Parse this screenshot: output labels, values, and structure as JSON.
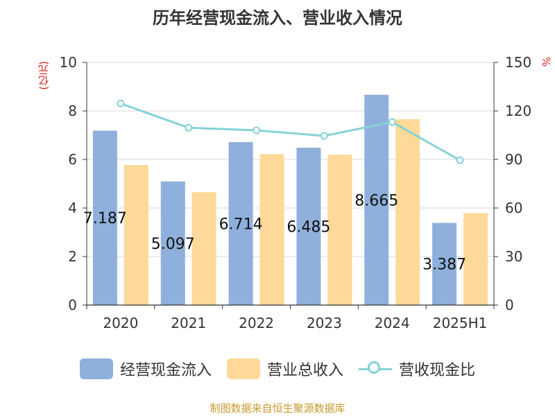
{
  "chart_data": {
    "type": "bar",
    "title": "历年经营现金流入、营业收入情况",
    "categories": [
      "2020",
      "2021",
      "2022",
      "2023",
      "2024",
      "2025H1"
    ],
    "y_left": {
      "unit": "(亿元)",
      "ticks": [
        "0",
        "2",
        "4",
        "6",
        "8",
        "10"
      ],
      "ylim": [
        0,
        10
      ]
    },
    "y_right": {
      "unit": "%",
      "ticks": [
        "0",
        "30",
        "60",
        "90",
        "120",
        "150"
      ],
      "ylim": [
        0,
        150
      ]
    },
    "series": [
      {
        "name": "经营现金流入",
        "type": "bar",
        "axis": "left",
        "color": "#8fb0dc",
        "values": [
          7.187,
          5.097,
          6.714,
          6.485,
          8.665,
          3.387
        ],
        "labels": [
          "7.187",
          "5.097",
          "6.714",
          "6.485",
          "8.665",
          "3.387"
        ]
      },
      {
        "name": "营业总收入",
        "type": "bar",
        "axis": "left",
        "color": "#fed999",
        "values": [
          5.77,
          4.65,
          6.22,
          6.2,
          7.66,
          3.79
        ]
      },
      {
        "name": "营收现金比",
        "type": "line",
        "axis": "right",
        "color": "#86d2d4",
        "values": [
          124.6,
          109.6,
          108.0,
          104.6,
          113.1,
          89.5
        ]
      }
    ],
    "grid": true,
    "legend": "bottom"
  },
  "source_text": "制图数据来自恒生聚源数据库"
}
